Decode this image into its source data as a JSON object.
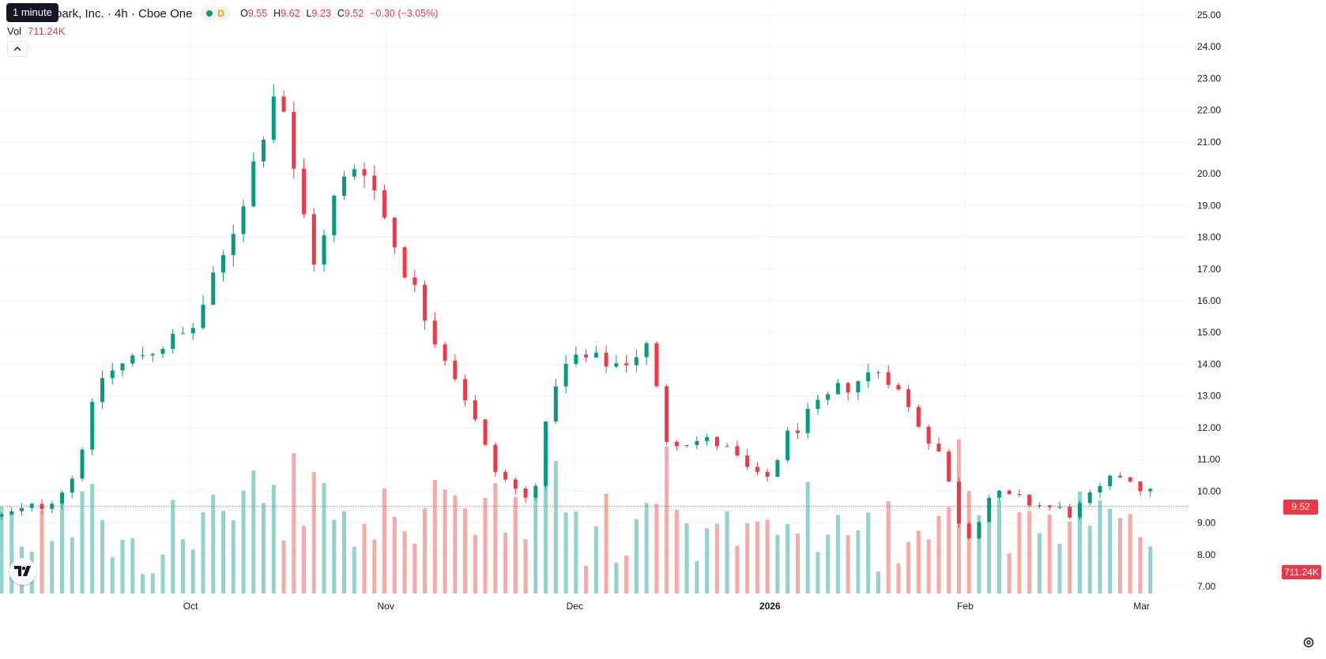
{
  "tooltip": "1 minute",
  "legend": {
    "title": "park, Inc. · 4h · Cboe One",
    "badge_letter": "D",
    "open_label": "O",
    "open": "9.55",
    "high_label": "H",
    "high": "9.62",
    "low_label": "L",
    "low": "9.23",
    "close_label": "C",
    "close": "9.52",
    "change": "−0.30 (−3.05%)"
  },
  "volume": {
    "label": "Vol",
    "value": "711.24K"
  },
  "current_price_label": "9.52",
  "current_volume_label": "711.24K",
  "colors": {
    "up": "#089981",
    "down": "#f23645",
    "up_volume": "#92d2cc",
    "down_volume": "#f7a9a7"
  },
  "icons": {
    "logo": "tradingview-logo-icon",
    "collapse": "chevron-up-icon",
    "settings": "gear-icon"
  },
  "chart_data": {
    "type": "candlestick",
    "title": "",
    "xlabel": "",
    "ylabel": "",
    "ylim": [
      7.0,
      25.0
    ],
    "grid": true,
    "y_ticks": [
      "25.00",
      "24.00",
      "23.00",
      "22.00",
      "21.00",
      "20.00",
      "19.00",
      "18.00",
      "17.00",
      "16.00",
      "15.00",
      "14.00",
      "13.00",
      "12.00",
      "11.00",
      "10.00",
      "9.00",
      "8.00",
      "7.00"
    ],
    "x_ticks": [
      "Oct",
      "Nov",
      "Dec",
      "2026",
      "Feb",
      "Mar"
    ],
    "close_anchors": [
      {
        "x": "Sep 1",
        "y": 9.2
      },
      {
        "x": "Sep 8",
        "y": 9.6
      },
      {
        "x": "Sep 12",
        "y": 10.3
      },
      {
        "x": "Sep 17",
        "y": 13.6
      },
      {
        "x": "Sep 24",
        "y": 14.4
      },
      {
        "x": "Oct 1",
        "y": 15.0
      },
      {
        "x": "Oct 6",
        "y": 17.2
      },
      {
        "x": "Oct 10",
        "y": 19.6
      },
      {
        "x": "Oct 15",
        "y": 23.2
      },
      {
        "x": "Oct 17",
        "y": 20.3
      },
      {
        "x": "Oct 21",
        "y": 17.0
      },
      {
        "x": "Oct 24",
        "y": 19.3
      },
      {
        "x": "Oct 28",
        "y": 20.6
      },
      {
        "x": "Nov 3",
        "y": 17.5
      },
      {
        "x": "Nov 8",
        "y": 15.2
      },
      {
        "x": "Nov 13",
        "y": 13.3
      },
      {
        "x": "Nov 18",
        "y": 10.7
      },
      {
        "x": "Nov 24",
        "y": 9.6
      },
      {
        "x": "Nov 28",
        "y": 13.5
      },
      {
        "x": "Dec 1",
        "y": 14.2
      },
      {
        "x": "Dec 8",
        "y": 14.0
      },
      {
        "x": "Dec 13",
        "y": 14.6
      },
      {
        "x": "Dec 15",
        "y": 11.7
      },
      {
        "x": "Dec 24",
        "y": 11.5
      },
      {
        "x": "Dec 31",
        "y": 10.2
      },
      {
        "x": "Jan 4",
        "y": 11.8
      },
      {
        "x": "Jan 12",
        "y": 13.2
      },
      {
        "x": "Jan 19",
        "y": 13.9
      },
      {
        "x": "Jan 23",
        "y": 12.6
      },
      {
        "x": "Jan 28",
        "y": 11.2
      },
      {
        "x": "Feb 1",
        "y": 8.4
      },
      {
        "x": "Feb 5",
        "y": 9.9
      },
      {
        "x": "Feb 12",
        "y": 9.6
      },
      {
        "x": "Feb 18",
        "y": 9.3
      },
      {
        "x": "Feb 26",
        "y": 10.6
      },
      {
        "x": "Mar 3",
        "y": 9.8
      },
      {
        "x": "Mar 8",
        "y": 9.3
      },
      {
        "x": "Mar 13",
        "y": 9.52
      }
    ],
    "volume_range_k": [
      0,
      2200
    ],
    "last_bar": {
      "open": 9.55,
      "high": 9.62,
      "low": 9.23,
      "close": 9.52,
      "volume": "711.24K"
    }
  }
}
